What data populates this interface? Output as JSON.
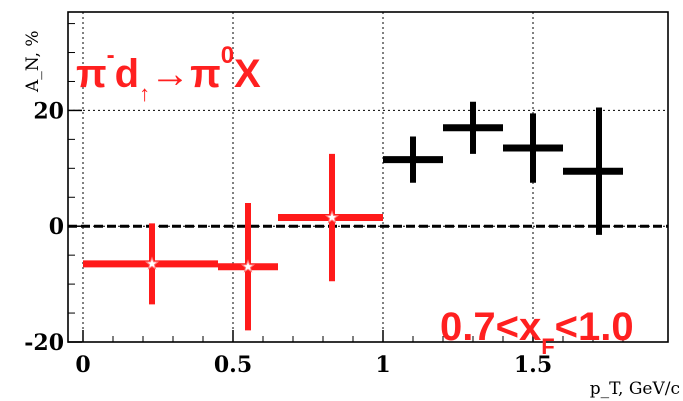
{
  "chart_data": {
    "type": "scatter",
    "title": "",
    "xlabel": "p_T, GeV/c",
    "ylabel": "A_N, %",
    "xlim": [
      -0.05,
      1.95
    ],
    "ylim": [
      -20,
      37
    ],
    "x_ticks": [
      0,
      0.5,
      1,
      1.5
    ],
    "x_tick_labels": [
      "0",
      "0.5",
      "1",
      "1.5"
    ],
    "y_ticks": [
      -20,
      0,
      20
    ],
    "y_tick_labels": [
      "-20",
      "0",
      "20"
    ],
    "grid": true,
    "reference_line_y": 0,
    "series": [
      {
        "color": "#ff1a1a",
        "marker": "star",
        "points": [
          {
            "x": 0.23,
            "y": -6.5,
            "x_low": 0.0,
            "x_high": 0.45,
            "y_err": 7.0
          },
          {
            "x": 0.55,
            "y": -7.0,
            "x_low": 0.45,
            "x_high": 0.65,
            "y_err": 11.0
          },
          {
            "x": 0.83,
            "y": 1.5,
            "x_low": 0.65,
            "x_high": 1.0,
            "y_err": 11.0
          }
        ]
      },
      {
        "color": "#000000",
        "marker": "none",
        "points": [
          {
            "x": 1.1,
            "y": 11.5,
            "x_low": 1.0,
            "x_high": 1.2,
            "y_err": 4.0
          },
          {
            "x": 1.3,
            "y": 17.0,
            "x_low": 1.2,
            "x_high": 1.4,
            "y_err": 4.5
          },
          {
            "x": 1.5,
            "y": 13.5,
            "x_low": 1.4,
            "x_high": 1.6,
            "y_err": 6.0
          },
          {
            "x": 1.72,
            "y": 9.5,
            "x_low": 1.6,
            "x_high": 1.8,
            "y_err": 11.0
          }
        ]
      }
    ],
    "annotations": {
      "reaction": {
        "p1": "π",
        "p1_sup": "-",
        "p2": "d",
        "p2_sub": "↑",
        "arrow": "→",
        "p3": "π",
        "p3_sup": "0",
        "p4": "X"
      },
      "xf_range": {
        "pre": "0.7<x",
        "sub": "F",
        "post": "<1.0"
      }
    }
  }
}
